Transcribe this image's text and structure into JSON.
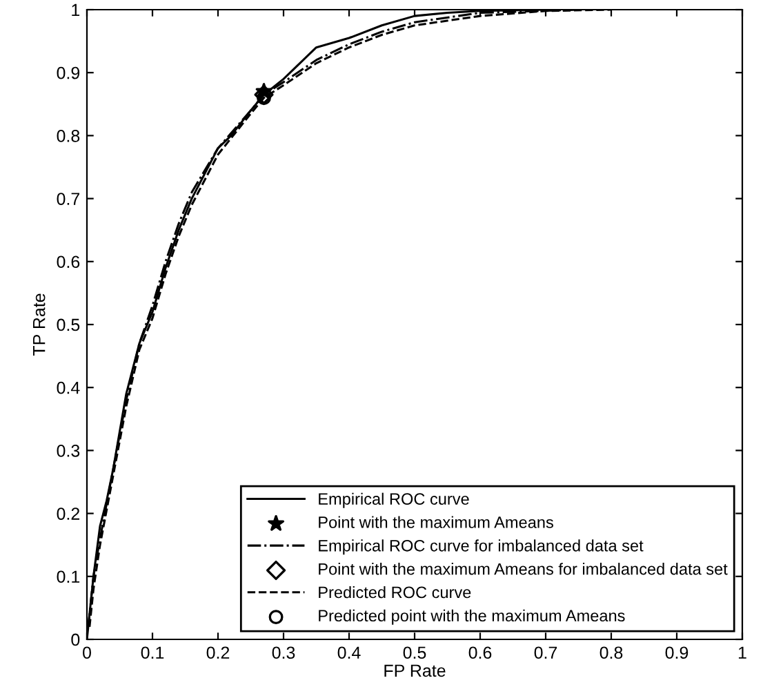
{
  "chart_data": {
    "type": "line",
    "xlabel": "FP Rate",
    "ylabel": "TP Rate",
    "xlim": [
      0,
      1
    ],
    "ylim": [
      0,
      1
    ],
    "xticks": [
      0,
      0.1,
      0.2,
      0.3,
      0.4,
      0.5,
      0.6,
      0.7,
      0.8,
      0.9,
      1
    ],
    "yticks": [
      0,
      0.1,
      0.2,
      0.3,
      0.4,
      0.5,
      0.6,
      0.7,
      0.8,
      0.9,
      1
    ],
    "grid": false,
    "legend": "bottom right",
    "series": [
      {
        "name": "Empirical ROC curve",
        "color": "#000000",
        "line_style": "solid",
        "marker": "none",
        "x": [
          0,
          0.005,
          0.01,
          0.02,
          0.03,
          0.04,
          0.05,
          0.06,
          0.07,
          0.08,
          0.1,
          0.12,
          0.14,
          0.16,
          0.18,
          0.2,
          0.22,
          0.25,
          0.27,
          0.3,
          0.35,
          0.4,
          0.45,
          0.5,
          0.55,
          0.6,
          0.7
        ],
        "values": [
          0,
          0.05,
          0.1,
          0.18,
          0.22,
          0.27,
          0.33,
          0.39,
          0.43,
          0.47,
          0.52,
          0.59,
          0.65,
          0.7,
          0.74,
          0.78,
          0.8,
          0.84,
          0.865,
          0.89,
          0.94,
          0.955,
          0.975,
          0.99,
          0.995,
          0.998,
          1
        ]
      },
      {
        "name": "Point with the maximum Ameans",
        "type": "scatter",
        "color": "#000000",
        "marker": "star",
        "x": [
          0.27
        ],
        "values": [
          0.87
        ]
      },
      {
        "name": "Empirical ROC curve for imbalanced data set",
        "color": "#000000",
        "line_style": "dashdot",
        "marker": "none",
        "x": [
          0.002,
          0.01,
          0.02,
          0.04,
          0.06,
          0.08,
          0.1,
          0.12,
          0.14,
          0.16,
          0.2,
          0.25,
          0.27,
          0.3,
          0.35,
          0.4,
          0.45,
          0.5,
          0.6,
          0.75
        ],
        "values": [
          0.02,
          0.1,
          0.16,
          0.27,
          0.38,
          0.47,
          0.53,
          0.6,
          0.66,
          0.71,
          0.78,
          0.84,
          0.865,
          0.885,
          0.92,
          0.945,
          0.965,
          0.98,
          0.995,
          1
        ]
      },
      {
        "name": "Point with the maximum Ameans for imbalanced data set",
        "type": "scatter",
        "color": "#000000",
        "marker": "diamond",
        "x": [
          0.27
        ],
        "values": [
          0.865
        ]
      },
      {
        "name": "Predicted ROC curve",
        "color": "#000000",
        "line_style": "dashed",
        "marker": "none",
        "x": [
          0.004,
          0.01,
          0.02,
          0.04,
          0.06,
          0.08,
          0.1,
          0.12,
          0.14,
          0.16,
          0.2,
          0.25,
          0.27,
          0.3,
          0.35,
          0.4,
          0.45,
          0.5,
          0.6,
          0.7,
          0.8
        ],
        "values": [
          0.02,
          0.08,
          0.15,
          0.26,
          0.37,
          0.46,
          0.51,
          0.58,
          0.64,
          0.69,
          0.77,
          0.835,
          0.86,
          0.88,
          0.915,
          0.94,
          0.96,
          0.975,
          0.99,
          0.998,
          1
        ]
      },
      {
        "name": "Predicted point with the maximum Ameans",
        "type": "scatter",
        "color": "#000000",
        "marker": "circle",
        "x": [
          0.27
        ],
        "values": [
          0.86
        ]
      }
    ]
  }
}
